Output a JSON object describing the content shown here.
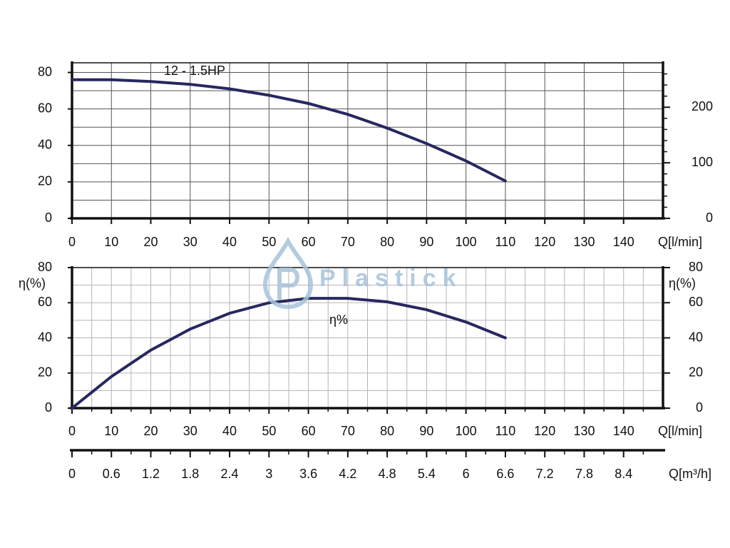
{
  "watermark": "Plastick",
  "chart_data": [
    {
      "type": "line",
      "xlim": [
        0,
        150
      ],
      "xticks": [
        0,
        10,
        20,
        30,
        40,
        50,
        60,
        70,
        80,
        90,
        100,
        110,
        120,
        130,
        140
      ],
      "ylim": [
        0,
        85.3
      ],
      "yticks": [
        0,
        20,
        40,
        60,
        80
      ],
      "minor_yticks": [
        10,
        30,
        50,
        70
      ],
      "y2lim": [
        0,
        280
      ],
      "y2ticks": [
        0,
        100,
        200
      ],
      "minor_y2ticks": [
        20,
        40,
        60,
        80,
        120,
        140,
        160,
        180,
        220,
        240,
        260
      ],
      "x_label": "Q[l/min]",
      "grid": true,
      "grid_color": "#555555",
      "series": [
        {
          "name": "12 - 1.5HP",
          "color": "#27285f",
          "x": [
            0,
            10,
            20,
            30,
            40,
            50,
            60,
            70,
            80,
            90,
            100,
            110
          ],
          "values": [
            76,
            76,
            75,
            73.5,
            71,
            67.5,
            63,
            57,
            49.5,
            41,
            31.5,
            20.5
          ]
        }
      ]
    },
    {
      "type": "line",
      "xlim": [
        0,
        150
      ],
      "xticks": [
        0,
        10,
        20,
        30,
        40,
        50,
        60,
        70,
        80,
        90,
        100,
        110,
        120,
        130,
        140
      ],
      "minor_xticks": [
        5,
        15,
        25,
        35,
        45,
        55,
        65,
        75,
        85,
        95,
        105,
        115,
        125,
        135,
        145
      ],
      "ylim": [
        0,
        80
      ],
      "yticks": [
        0,
        20,
        40,
        60,
        80
      ],
      "minor_yticks": [
        10,
        30,
        50,
        70
      ],
      "y2lim": [
        0,
        80
      ],
      "y2ticks": [
        0,
        20,
        40,
        60,
        80
      ],
      "x_label": "Q[l/min]",
      "y_label": "η(%)",
      "y2_label": "η(%)",
      "grid": true,
      "grid_color": "#b5b5b5",
      "series": [
        {
          "name": "η%",
          "color": "#27285f",
          "x": [
            0,
            10,
            20,
            30,
            40,
            50,
            60,
            70,
            80,
            90,
            100,
            110
          ],
          "values": [
            0,
            18,
            33,
            45,
            54,
            60,
            62.5,
            62.5,
            60.5,
            56,
            49,
            40
          ]
        }
      ]
    },
    {
      "type": "axis",
      "xlim": [
        0,
        9
      ],
      "xticks": [
        0,
        0.6,
        1.2,
        1.8,
        2.4,
        3,
        3.6,
        4.2,
        4.8,
        5.4,
        6,
        6.6,
        7.2,
        7.8,
        8.4
      ],
      "minor_xticks": [
        0.3,
        0.9,
        1.5,
        2.1,
        2.7,
        3.3,
        3.9,
        4.5,
        5.1,
        5.7,
        6.3,
        6.9,
        7.5,
        8.1,
        8.7
      ],
      "x_label": "Q[m³/h]"
    }
  ]
}
